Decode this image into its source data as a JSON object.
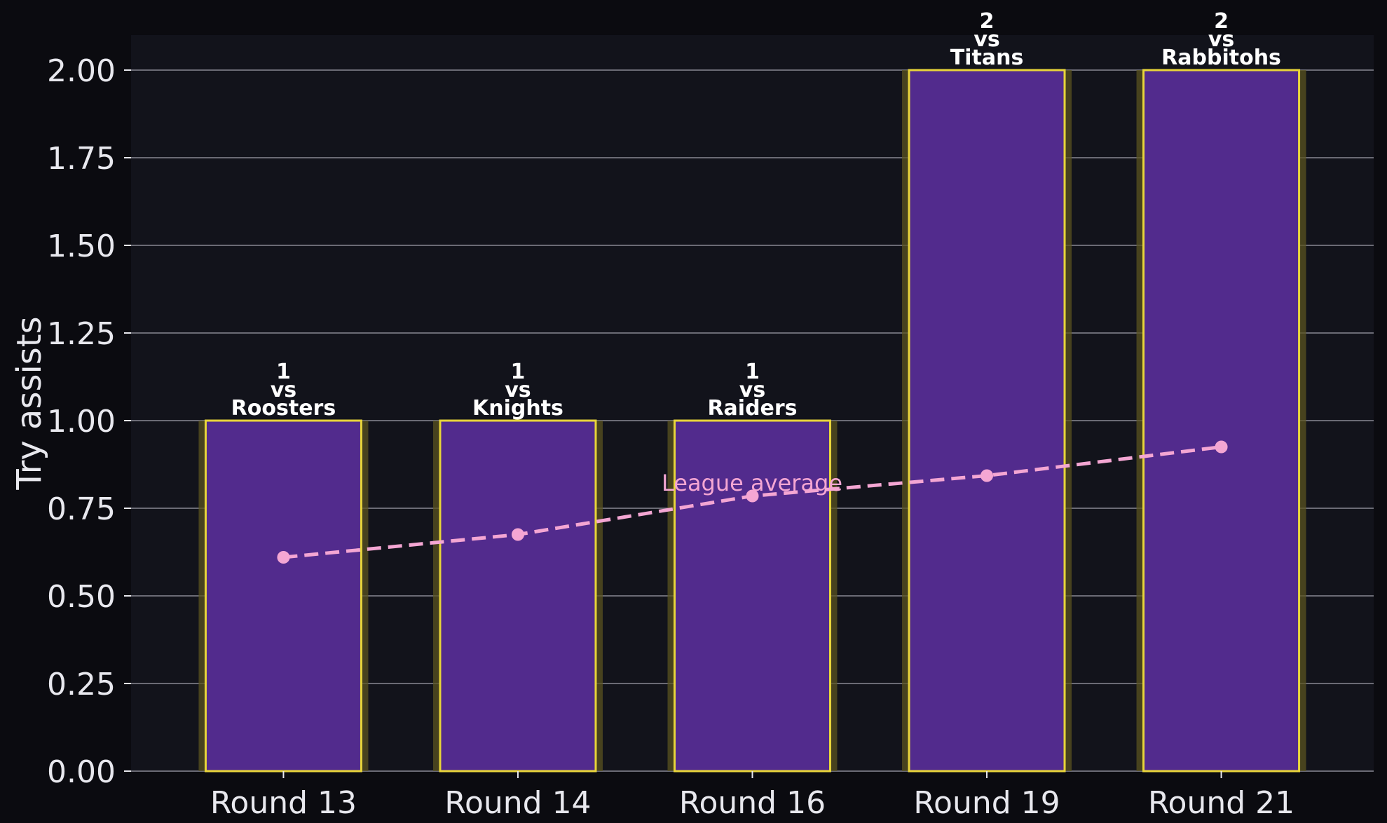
{
  "colors": {
    "page_bg": "#0b0b10",
    "plot_bg": "#12131b",
    "grid": "#6b6b75",
    "bar_fill": "#522b8d",
    "bar_edge": "#e8d53a",
    "bar_glow": "#5a5320",
    "avg_line": "#f4a6d3",
    "text": "#e8e8ee",
    "bar_label": "#ffffff"
  },
  "chart_data": {
    "type": "bar",
    "ylabel": "Try assists",
    "ylim": [
      0,
      2.1
    ],
    "yticks": [
      "0.00",
      "0.25",
      "0.50",
      "0.75",
      "1.00",
      "1.25",
      "1.50",
      "1.75",
      "2.00"
    ],
    "grid": "horizontal",
    "categories": [
      "Round 13",
      "Round 14",
      "Round 16",
      "Round 19",
      "Round 21"
    ],
    "values": [
      1,
      1,
      1,
      2,
      2
    ],
    "bar_labels": [
      [
        "1",
        "vs",
        "Roosters"
      ],
      [
        "1",
        "vs",
        "Knights"
      ],
      [
        "1",
        "vs",
        "Raiders"
      ],
      [
        "2",
        "vs",
        "Titans"
      ],
      [
        "2",
        "vs",
        "Rabbitohs"
      ]
    ],
    "league_average": {
      "label": "League average",
      "values": [
        0.61,
        0.675,
        0.785,
        0.843,
        0.925
      ]
    }
  }
}
